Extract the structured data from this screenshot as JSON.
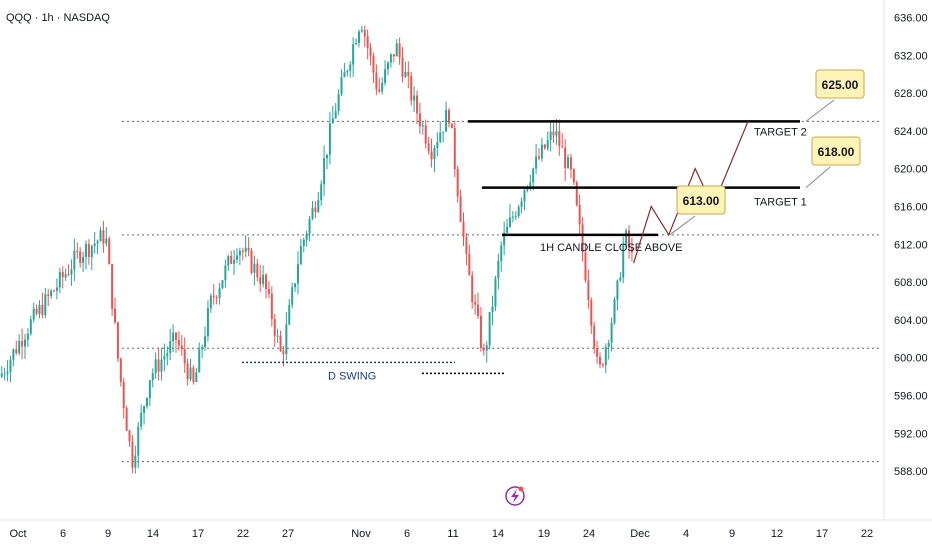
{
  "header": {
    "symbol_title": "QQQ · 1h · NASDAQ"
  },
  "colors": {
    "up": "#26a69a",
    "down": "#ef5350",
    "badge": "#fff4b8",
    "projection": "#8b2b2b",
    "swing": "#1e3a8a",
    "bolt": "#9c27b0"
  },
  "icons": {
    "lightning": "lightning-icon"
  },
  "chart_data": {
    "type": "candlestick",
    "title": "",
    "ylim": [
      586,
      637
    ],
    "y_ticks": [
      "636.00",
      "632.00",
      "628.00",
      "624.00",
      "620.00",
      "616.00",
      "612.00",
      "608.00",
      "604.00",
      "600.00",
      "596.00",
      "592.00",
      "588.00"
    ],
    "x_ticks": [
      "Oct",
      "6",
      "9",
      "14",
      "17",
      "22",
      "27",
      "Nov",
      "6",
      "11",
      "14",
      "19",
      "24",
      "Dec",
      "4",
      "9",
      "12",
      "17",
      "22"
    ],
    "price_path": [
      [
        0,
        598
      ],
      [
        0.03,
        603
      ],
      [
        0.06,
        607
      ],
      [
        0.09,
        611
      ],
      [
        0.12,
        613
      ],
      [
        0.135,
        599
      ],
      [
        0.15,
        589
      ],
      [
        0.17,
        598
      ],
      [
        0.2,
        602
      ],
      [
        0.22,
        597
      ],
      [
        0.24,
        606
      ],
      [
        0.27,
        612
      ],
      [
        0.3,
        608
      ],
      [
        0.32,
        600
      ],
      [
        0.34,
        611
      ],
      [
        0.36,
        617
      ],
      [
        0.38,
        626
      ],
      [
        0.41,
        636
      ],
      [
        0.43,
        628
      ],
      [
        0.45,
        633
      ],
      [
        0.47,
        627
      ],
      [
        0.49,
        622
      ],
      [
        0.51,
        626
      ],
      [
        0.53,
        610
      ],
      [
        0.55,
        600
      ],
      [
        0.57,
        612
      ],
      [
        0.6,
        619
      ],
      [
        0.63,
        624
      ],
      [
        0.65,
        619
      ],
      [
        0.67,
        606
      ],
      [
        0.68,
        598
      ],
      [
        0.7,
        606
      ],
      [
        0.71,
        613
      ],
      [
        0.72,
        610
      ]
    ],
    "levels": [
      {
        "price": 625.0,
        "style": "dashed"
      },
      {
        "price": 613.0,
        "style": "dashed"
      },
      {
        "price": 601.0,
        "style": "dashed"
      },
      {
        "price": 589.0,
        "style": "dashed"
      }
    ],
    "annotations": {
      "target2": {
        "label": "TARGET 2",
        "price": 625.0,
        "badge": "625.00"
      },
      "target1": {
        "label": "TARGET 1",
        "price": 618.0,
        "badge": "618.00"
      },
      "close_above": {
        "label": "1H CANDLE CLOSE ABOVE",
        "price": 613.0,
        "badge": "613.00"
      },
      "swing": {
        "label": "D SWING",
        "price": 599.5
      }
    },
    "projection": [
      [
        0.72,
        610
      ],
      [
        0.74,
        616
      ],
      [
        0.76,
        613
      ],
      [
        0.79,
        620
      ],
      [
        0.81,
        616
      ],
      [
        0.85,
        625
      ]
    ]
  }
}
